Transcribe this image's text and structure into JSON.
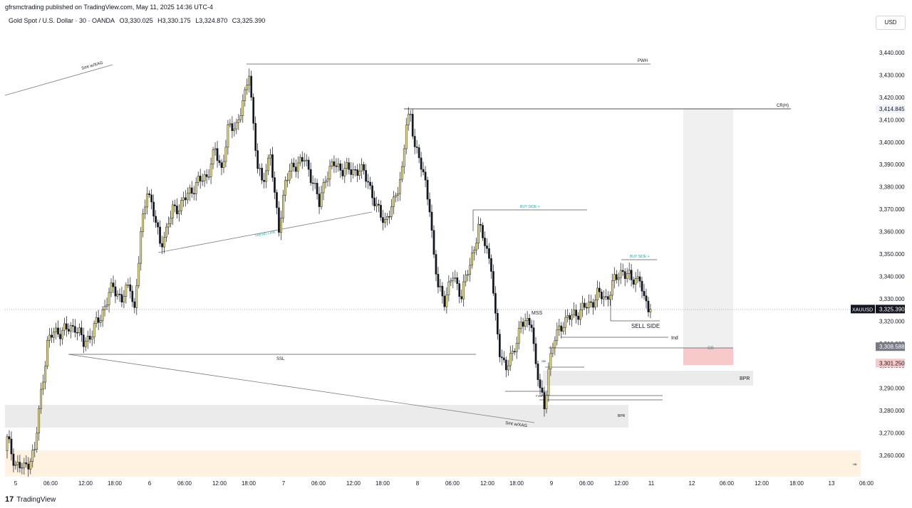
{
  "header": {
    "publisher_line": "gfrsmctrading published on TradingView.com, May 11, 2025 14:36 UTC-4",
    "symbol": "Gold Spot / U.S. Dollar · 30 · OANDA",
    "open": "O3,330.025",
    "high": "H3,330.175",
    "low": "L3,324.870",
    "close": "C3,325.390"
  },
  "currency_button": "USD",
  "footer": {
    "logo_text": "TradingView",
    "logo_mark": "17"
  },
  "colors": {
    "candle_up": "#f5e56b",
    "candle_down": "#131722",
    "zone_gray": "#ebebeb",
    "zone_orange": "#fff2e0",
    "zone_red": "#f7c9c9",
    "label_teal": "#26a69a",
    "price_tag_dark": "#131722",
    "price_tag_gray": "#787b86",
    "price_tag_red": "#f7c9c9"
  },
  "chart_data": {
    "type": "candlestick",
    "price_axis": {
      "ticks": [
        "3,440.000",
        "3,430.000",
        "3,420.000",
        "3,410.000",
        "3,400.000",
        "3,390.000",
        "3,380.000",
        "3,370.000",
        "3,360.000",
        "3,350.000",
        "3,340.000",
        "3,330.000",
        "3,320.000",
        "3,310.000",
        "3,300.000",
        "3,290.000",
        "3,280.000",
        "3,270.000",
        "3,260.000"
      ],
      "range": [
        3250,
        3450
      ]
    },
    "time_axis": {
      "ticks": [
        "5",
        "06:00",
        "12:00",
        "18:00",
        "6",
        "06:00",
        "12:00",
        "18:00",
        "7",
        "06:00",
        "12:00",
        "18:00",
        "8",
        "06:00",
        "12:00",
        "18:00",
        "9",
        "06:00",
        "12:00",
        "11",
        "12",
        "06:00",
        "12:00",
        "18:00",
        "13",
        "06:00"
      ]
    },
    "price_tags": [
      {
        "label": "3,414.845",
        "price": 3414.845,
        "style": "light"
      },
      {
        "symbol": "XAUUSD",
        "label": "3,325.390",
        "price": 3325.39,
        "style": "dark"
      },
      {
        "label": "3,308.588",
        "price": 3308.588,
        "style": "gray"
      },
      {
        "label": "3,301.250",
        "price": 3301.25,
        "style": "red"
      }
    ],
    "last_price": 3325.39,
    "annotations": [
      "PWH",
      "CR(H)",
      "BUY SIDE +",
      "BUY SIDE +",
      "MSS",
      "SELL SIDE",
      "Ind",
      "OB",
      "BPR",
      "SSL",
      "Smt w/XAG",
      "Smt w/XAG",
      "TREND LINE",
      "BPR",
      "HB",
      "OB",
      "FVG"
    ],
    "path_anchors": [
      [
        0,
        3267
      ],
      [
        4,
        3256
      ],
      [
        8,
        3254
      ],
      [
        13,
        3262
      ],
      [
        16,
        3288
      ],
      [
        19,
        3310
      ],
      [
        22,
        3315
      ],
      [
        28,
        3316
      ],
      [
        32,
        3318
      ],
      [
        36,
        3310
      ],
      [
        40,
        3315
      ],
      [
        44,
        3322
      ],
      [
        48,
        3332
      ],
      [
        50,
        3335
      ],
      [
        54,
        3330
      ],
      [
        58,
        3336
      ],
      [
        60,
        3325
      ],
      [
        63,
        3358
      ],
      [
        66,
        3380
      ],
      [
        68,
        3372
      ],
      [
        72,
        3355
      ],
      [
        75,
        3360
      ],
      [
        78,
        3370
      ],
      [
        82,
        3372
      ],
      [
        86,
        3378
      ],
      [
        90,
        3382
      ],
      [
        94,
        3385
      ],
      [
        98,
        3396
      ],
      [
        101,
        3388
      ],
      [
        104,
        3405
      ],
      [
        108,
        3408
      ],
      [
        112,
        3420
      ],
      [
        114,
        3432
      ],
      [
        116,
        3408
      ],
      [
        118,
        3388
      ],
      [
        120,
        3382
      ],
      [
        124,
        3395
      ],
      [
        126,
        3375
      ],
      [
        128,
        3362
      ],
      [
        131,
        3382
      ],
      [
        135,
        3390
      ],
      [
        140,
        3392
      ],
      [
        144,
        3383
      ],
      [
        147,
        3372
      ],
      [
        150,
        3385
      ],
      [
        154,
        3390
      ],
      [
        158,
        3388
      ],
      [
        162,
        3387
      ],
      [
        166,
        3388
      ],
      [
        170,
        3383
      ],
      [
        174,
        3370
      ],
      [
        178,
        3365
      ],
      [
        182,
        3372
      ],
      [
        186,
        3388
      ],
      [
        188,
        3408
      ],
      [
        190,
        3411
      ],
      [
        192,
        3400
      ],
      [
        196,
        3385
      ],
      [
        199,
        3372
      ],
      [
        201,
        3348
      ],
      [
        203,
        3335
      ],
      [
        206,
        3330
      ],
      [
        210,
        3340
      ],
      [
        214,
        3332
      ],
      [
        218,
        3345
      ],
      [
        222,
        3362
      ],
      [
        225,
        3355
      ],
      [
        228,
        3345
      ],
      [
        230,
        3320
      ],
      [
        232,
        3306
      ],
      [
        235,
        3300
      ],
      [
        238,
        3304
      ],
      [
        242,
        3320
      ],
      [
        245,
        3318
      ],
      [
        247,
        3320
      ],
      [
        249,
        3300
      ],
      [
        251,
        3290
      ],
      [
        253,
        3280
      ],
      [
        255,
        3300
      ],
      [
        258,
        3312
      ],
      [
        262,
        3320
      ],
      [
        266,
        3322
      ],
      [
        270,
        3325
      ],
      [
        274,
        3327
      ],
      [
        278,
        3332
      ],
      [
        282,
        3330
      ],
      [
        286,
        3338
      ],
      [
        290,
        3343
      ],
      [
        294,
        3338
      ],
      [
        298,
        3340
      ],
      [
        300,
        3328
      ],
      [
        303,
        3325.39
      ]
    ]
  }
}
